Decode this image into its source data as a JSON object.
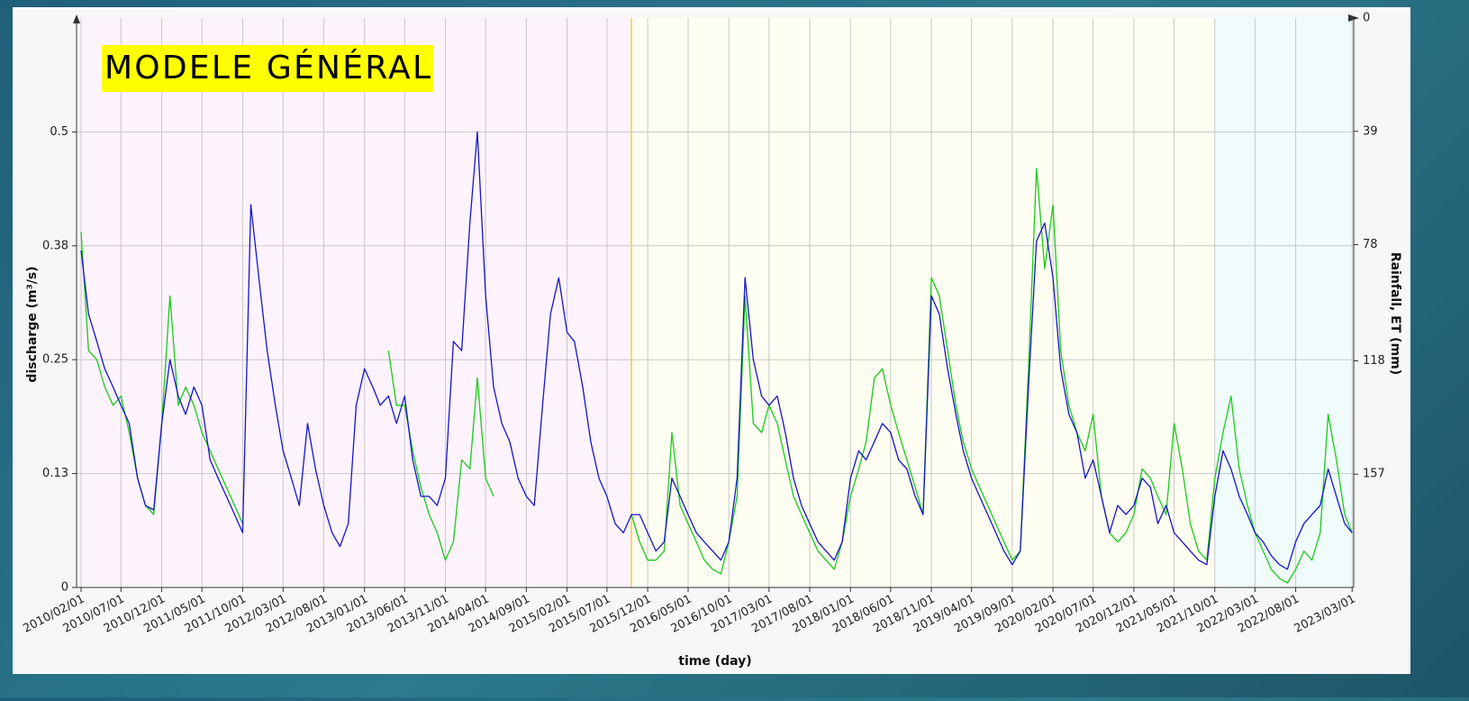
{
  "chart_data": {
    "type": "line",
    "title": "MODELE GÉNÉRAL",
    "x_label": "time (day)",
    "y_label": "discharge (m³/s)",
    "y2_label": "Rainfall, ET (mm)",
    "xlim": [
      "2010/01/15",
      "2023/03/07"
    ],
    "xticks": [
      "2010/02/01",
      "2010/07/01",
      "2010/12/01",
      "2011/05/01",
      "2011/10/01",
      "2012/03/01",
      "2012/08/01",
      "2013/01/01",
      "2013/06/01",
      "2013/11/01",
      "2014/04/01",
      "2014/09/01",
      "2015/02/01",
      "2015/07/01",
      "2015/12/01",
      "2016/05/01",
      "2016/10/01",
      "2017/03/01",
      "2017/08/01",
      "2018/01/01",
      "2018/06/01",
      "2018/11/01",
      "2019/04/01",
      "2019/09/01",
      "2020/02/01",
      "2020/07/01",
      "2020/12/01",
      "2021/05/01",
      "2021/10/01",
      "2022/03/01",
      "2022/08/01",
      "2023/03/01"
    ],
    "ylim": [
      0,
      0.625
    ],
    "yticks": [
      0,
      {
        "value": 0.125,
        "label": "0.13"
      },
      0.25,
      {
        "value": 0.375,
        "label": "0.38"
      },
      0.5
    ],
    "y2lim": [
      196,
      0
    ],
    "y2ticks": [
      0,
      39,
      78,
      118,
      157
    ],
    "grid": true,
    "period_breaks": [
      "2015/10/01",
      "2021/10/01"
    ],
    "period_colors": [
      "#fdf3fc",
      "#fefdf1",
      "#f0fcfc"
    ],
    "break_line_color": "#f2c400",
    "x": [
      "2010/02/01",
      "2010/03/01",
      "2010/04/01",
      "2010/05/01",
      "2010/06/01",
      "2010/07/01",
      "2010/08/01",
      "2010/09/01",
      "2010/10/01",
      "2010/11/01",
      "2010/12/01",
      "2011/01/01",
      "2011/02/01",
      "2011/03/01",
      "2011/04/01",
      "2011/05/01",
      "2011/06/01",
      "2011/07/01",
      "2011/08/01",
      "2011/09/01",
      "2011/10/01",
      "2011/11/01",
      "2011/12/01",
      "2012/01/01",
      "2012/02/01",
      "2012/03/01",
      "2012/04/01",
      "2012/05/01",
      "2012/06/01",
      "2012/07/01",
      "2012/08/01",
      "2012/09/01",
      "2012/10/01",
      "2012/11/01",
      "2012/12/01",
      "2013/01/01",
      "2013/02/01",
      "2013/03/01",
      "2013/04/01",
      "2013/05/01",
      "2013/06/01",
      "2013/07/01",
      "2013/08/01",
      "2013/09/01",
      "2013/10/01",
      "2013/11/01",
      "2013/12/01",
      "2014/01/01",
      "2014/02/01",
      "2014/03/01",
      "2014/04/01",
      "2014/05/01",
      "2014/06/01",
      "2014/07/01",
      "2014/08/01",
      "2014/09/01",
      "2014/10/01",
      "2014/11/01",
      "2014/12/01",
      "2015/01/01",
      "2015/02/01",
      "2015/03/01",
      "2015/04/01",
      "2015/05/01",
      "2015/06/01",
      "2015/07/01",
      "2015/08/01",
      "2015/09/01",
      "2015/10/01",
      "2015/11/01",
      "2015/12/01",
      "2016/01/01",
      "2016/02/01",
      "2016/03/01",
      "2016/04/01",
      "2016/05/01",
      "2016/06/01",
      "2016/07/01",
      "2016/08/01",
      "2016/09/01",
      "2016/10/01",
      "2016/11/01",
      "2016/12/01",
      "2017/01/01",
      "2017/02/01",
      "2017/03/01",
      "2017/04/01",
      "2017/05/01",
      "2017/06/01",
      "2017/07/01",
      "2017/08/01",
      "2017/09/01",
      "2017/10/01",
      "2017/11/01",
      "2017/12/01",
      "2018/01/01",
      "2018/02/01",
      "2018/03/01",
      "2018/04/01",
      "2018/05/01",
      "2018/06/01",
      "2018/07/01",
      "2018/08/01",
      "2018/09/01",
      "2018/10/01",
      "2018/11/01",
      "2018/12/01",
      "2019/01/01",
      "2019/02/01",
      "2019/03/01",
      "2019/04/01",
      "2019/05/01",
      "2019/06/01",
      "2019/07/01",
      "2019/08/01",
      "2019/09/01",
      "2019/10/01",
      "2019/11/01",
      "2019/12/01",
      "2020/01/01",
      "2020/02/01",
      "2020/03/01",
      "2020/04/01",
      "2020/05/01",
      "2020/06/01",
      "2020/07/01",
      "2020/08/01",
      "2020/09/01",
      "2020/10/01",
      "2020/11/01",
      "2020/12/01",
      "2021/01/01",
      "2021/02/01",
      "2021/03/01",
      "2021/04/01",
      "2021/05/01",
      "2021/06/01",
      "2021/07/01",
      "2021/08/01",
      "2021/09/01",
      "2021/10/01",
      "2021/11/01",
      "2021/12/01",
      "2022/01/01",
      "2022/02/01",
      "2022/03/01",
      "2022/04/01",
      "2022/05/01",
      "2022/06/01",
      "2022/07/01",
      "2022/08/01",
      "2022/09/01",
      "2022/10/01",
      "2022/11/01",
      "2022/12/01",
      "2023/01/01",
      "2023/02/01",
      "2023/03/01"
    ],
    "series": [
      {
        "color": "#1aca1a",
        "values": [
          0.39,
          0.26,
          0.25,
          0.22,
          0.2,
          0.21,
          0.17,
          0.12,
          0.09,
          0.08,
          0.18,
          0.32,
          0.2,
          0.22,
          0.2,
          0.17,
          0.15,
          0.13,
          0.11,
          0.09,
          0.07,
          null,
          null,
          null,
          null,
          null,
          null,
          null,
          null,
          null,
          null,
          null,
          null,
          null,
          null,
          null,
          null,
          null,
          0.26,
          0.2,
          0.2,
          0.15,
          0.11,
          0.08,
          0.06,
          0.03,
          0.05,
          0.14,
          0.13,
          0.23,
          0.12,
          0.1,
          null,
          null,
          null,
          null,
          null,
          null,
          null,
          null,
          null,
          null,
          null,
          null,
          null,
          null,
          null,
          null,
          0.08,
          0.05,
          0.03,
          0.03,
          0.04,
          0.17,
          0.09,
          0.07,
          0.05,
          0.03,
          0.02,
          0.015,
          0.05,
          0.1,
          0.32,
          0.18,
          0.17,
          0.2,
          0.18,
          0.14,
          0.1,
          0.08,
          0.06,
          0.04,
          0.03,
          0.02,
          0.05,
          0.1,
          0.13,
          0.16,
          0.23,
          0.24,
          0.2,
          0.17,
          0.14,
          0.11,
          0.08,
          0.34,
          0.32,
          0.26,
          0.2,
          0.16,
          0.13,
          0.11,
          0.09,
          0.07,
          0.05,
          0.03,
          0.04,
          0.24,
          0.46,
          0.35,
          0.42,
          0.26,
          0.2,
          0.17,
          0.15,
          0.19,
          0.1,
          0.06,
          0.05,
          0.06,
          0.08,
          0.13,
          0.12,
          0.1,
          0.08,
          0.18,
          0.13,
          0.07,
          0.04,
          0.03,
          0.12,
          0.17,
          0.21,
          0.13,
          0.09,
          0.06,
          0.04,
          0.02,
          0.01,
          0.005,
          0.02,
          0.04,
          0.03,
          0.06,
          0.19,
          0.14,
          0.08,
          0.06
        ]
      },
      {
        "color": "#1515c8",
        "values": [
          0.37,
          0.3,
          0.27,
          0.24,
          0.22,
          0.2,
          0.18,
          0.12,
          0.09,
          0.085,
          0.18,
          0.25,
          0.21,
          0.19,
          0.22,
          0.2,
          0.14,
          0.12,
          0.1,
          0.08,
          0.06,
          0.42,
          0.34,
          0.26,
          0.2,
          0.15,
          0.12,
          0.09,
          0.18,
          0.13,
          0.09,
          0.06,
          0.045,
          0.07,
          0.2,
          0.24,
          0.22,
          0.2,
          0.21,
          0.18,
          0.21,
          0.14,
          0.1,
          0.1,
          0.09,
          0.12,
          0.27,
          0.26,
          0.4,
          0.5,
          0.32,
          0.22,
          0.18,
          0.16,
          0.12,
          0.1,
          0.09,
          0.2,
          0.3,
          0.34,
          0.28,
          0.27,
          0.22,
          0.16,
          0.12,
          0.1,
          0.07,
          0.06,
          0.08,
          0.08,
          0.06,
          0.04,
          0.05,
          0.12,
          0.1,
          0.08,
          0.06,
          0.05,
          0.04,
          0.03,
          0.05,
          0.12,
          0.34,
          0.25,
          0.21,
          0.2,
          0.21,
          0.17,
          0.12,
          0.09,
          0.07,
          0.05,
          0.04,
          0.03,
          0.05,
          0.12,
          0.15,
          0.14,
          0.16,
          0.18,
          0.17,
          0.14,
          0.13,
          0.1,
          0.08,
          0.32,
          0.3,
          0.24,
          0.19,
          0.15,
          0.12,
          0.1,
          0.08,
          0.06,
          0.04,
          0.025,
          0.04,
          0.22,
          0.38,
          0.4,
          0.34,
          0.24,
          0.19,
          0.17,
          0.12,
          0.14,
          0.1,
          0.06,
          0.09,
          0.08,
          0.09,
          0.12,
          0.11,
          0.07,
          0.09,
          0.06,
          0.05,
          0.04,
          0.03,
          0.025,
          0.1,
          0.15,
          0.13,
          0.1,
          0.08,
          0.06,
          0.05,
          0.035,
          0.025,
          0.02,
          0.05,
          0.07,
          0.08,
          0.09,
          0.13,
          0.1,
          0.07,
          0.06
        ]
      }
    ]
  }
}
